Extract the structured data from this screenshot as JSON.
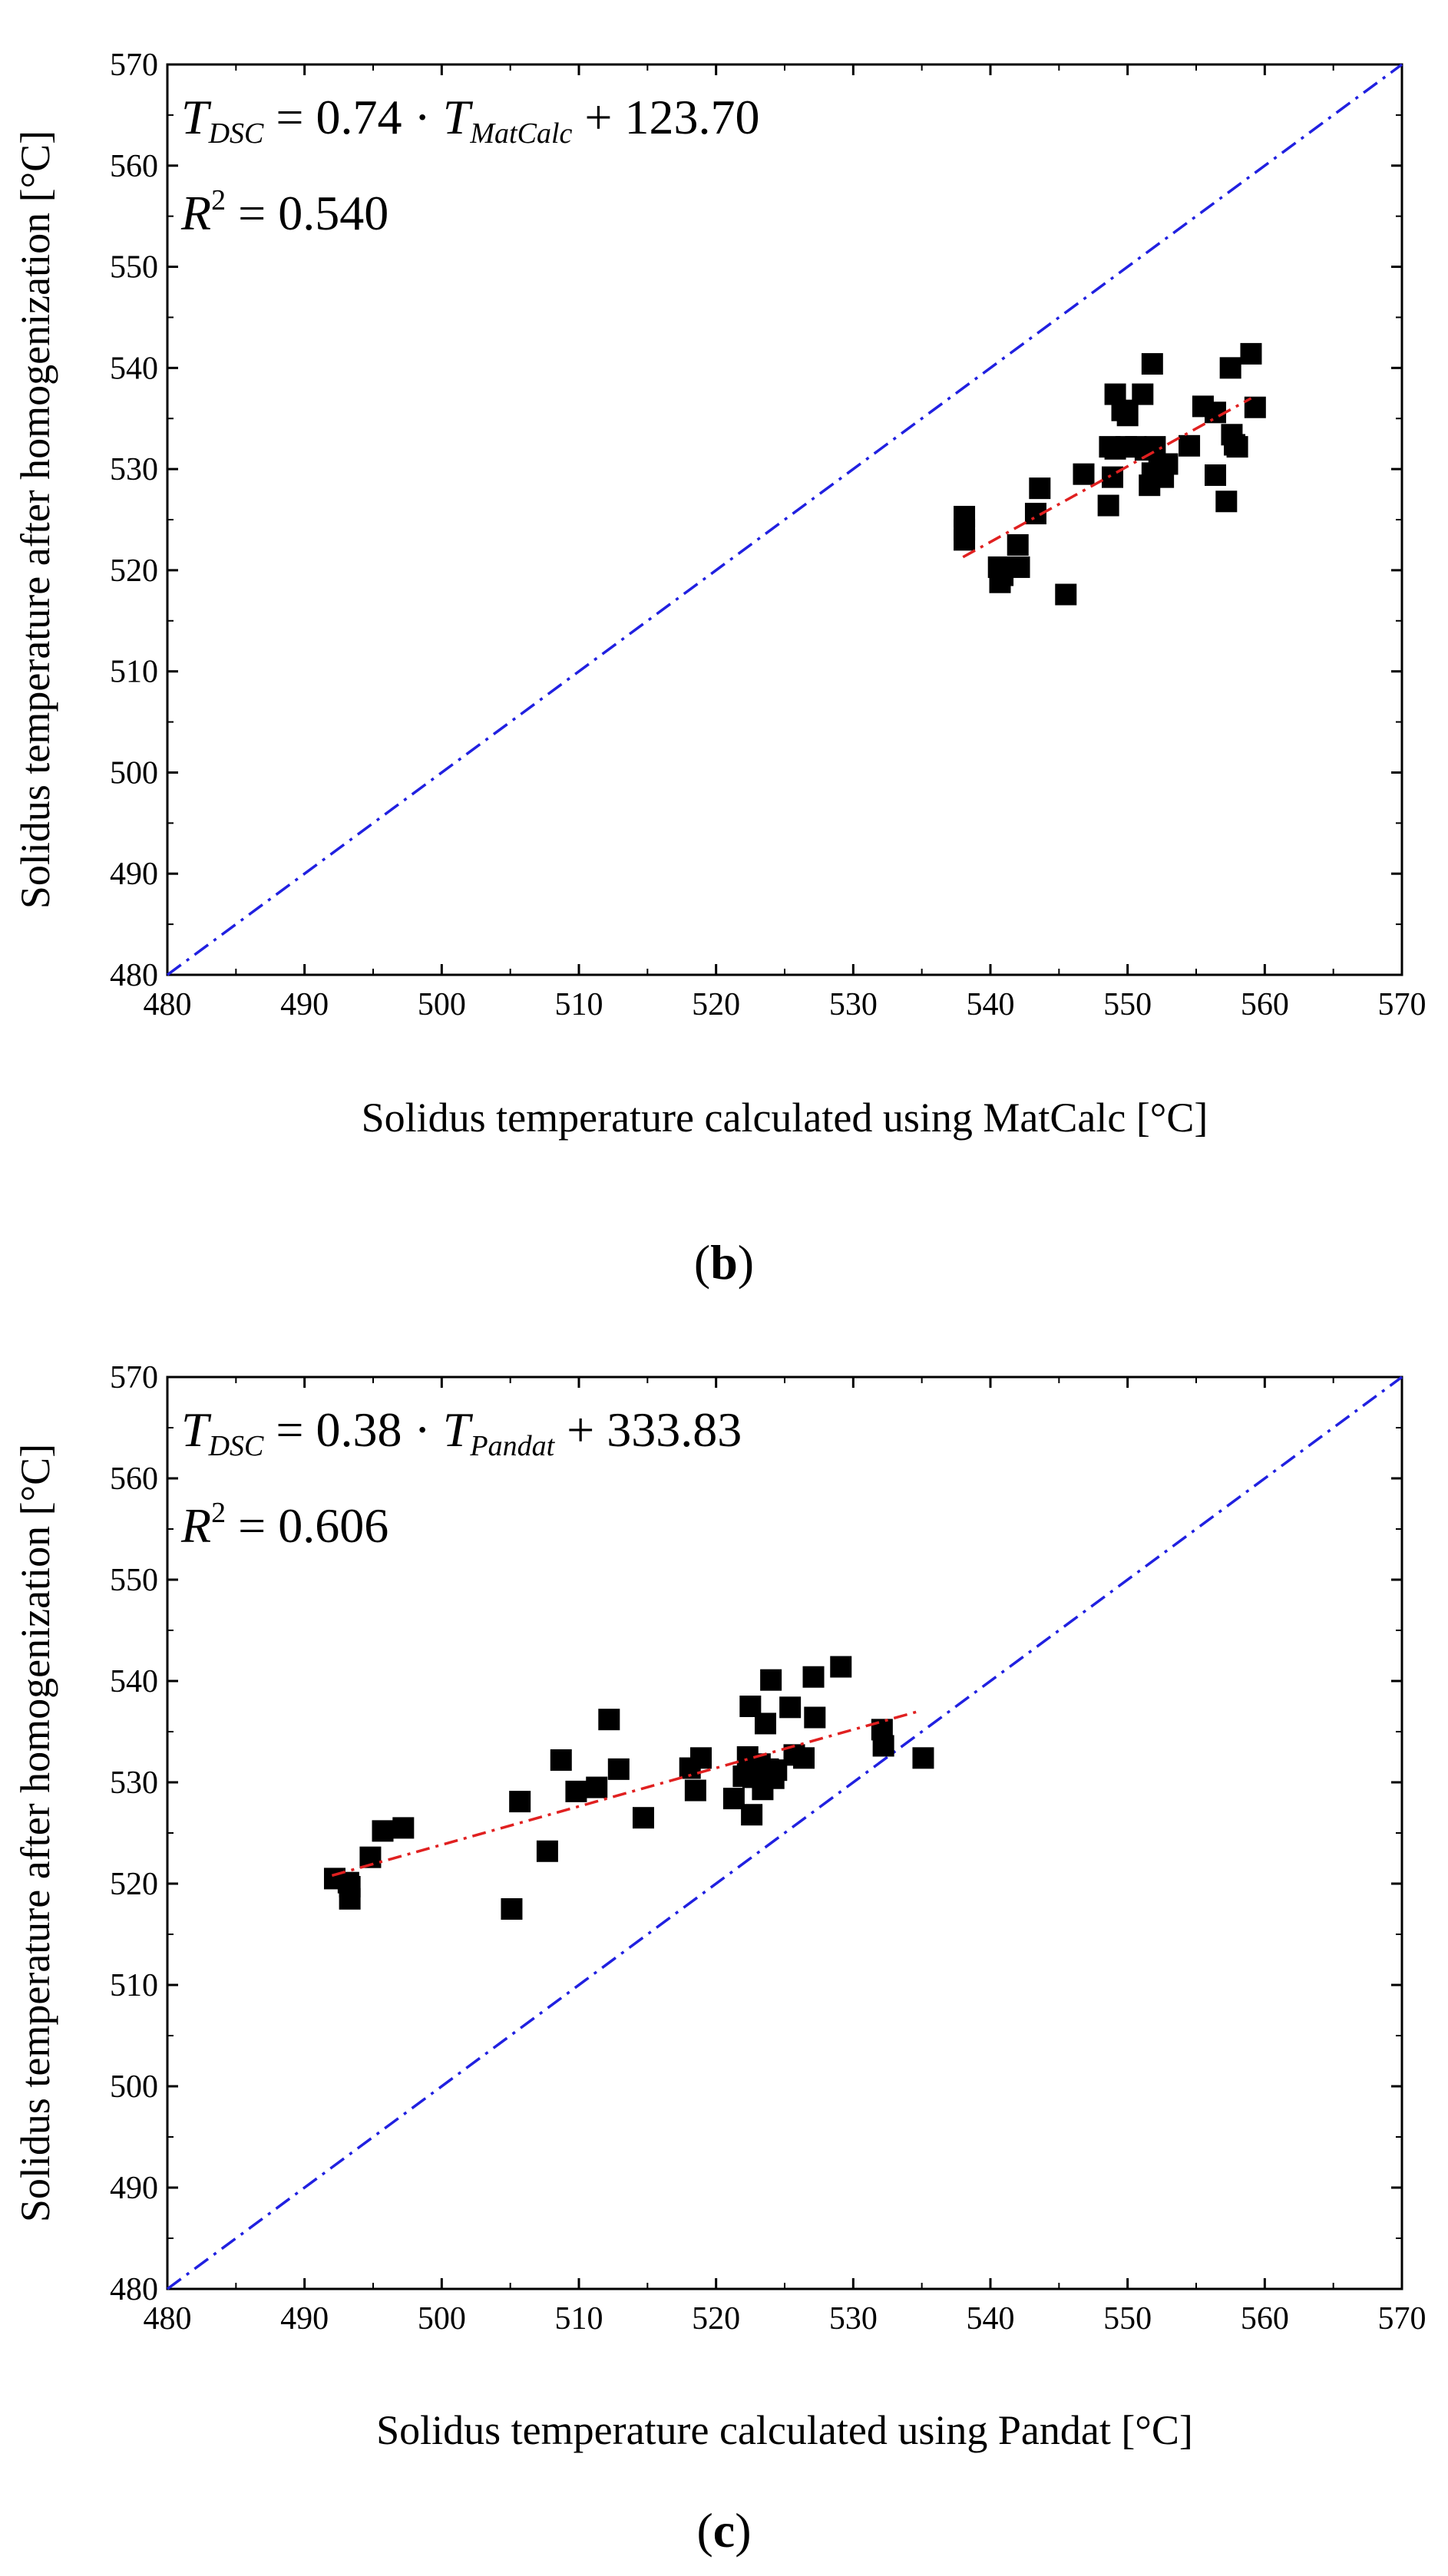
{
  "chart_data": [
    {
      "type": "scatter",
      "caption_open": "(",
      "caption_letter": "b",
      "caption_close": ")",
      "xlabel": "Solidus temperature calculated using MatCalc [°C]",
      "ylabel": "Solidus temperature after homogenization [°C]",
      "xlim": [
        480,
        570
      ],
      "ylim": [
        480,
        570
      ],
      "xticks": [
        "480",
        "490",
        "500",
        "510",
        "520",
        "530",
        "540",
        "550",
        "560",
        "570"
      ],
      "yticks": [
        "480",
        "490",
        "500",
        "510",
        "520",
        "530",
        "540",
        "550",
        "560",
        "570"
      ],
      "equation": {
        "lhs_main": "T",
        "lhs_sub": "DSC",
        "coef": " = 0.74 · ",
        "var_main": "T",
        "var_sub": "MatCalc",
        "intercept": " + 123.70",
        "r2_main": "R",
        "r2_sup": "2",
        "r2_value": " = 0.540"
      },
      "reference_line": {
        "name": "y = x",
        "color": "#2020e0",
        "x": [
          480,
          570
        ],
        "y": [
          480,
          570
        ]
      },
      "fit_line": {
        "name": "linear fit",
        "color": "#e02020",
        "x": [
          538,
          559
        ],
        "y": [
          521.3,
          537.0
        ]
      },
      "marker_color": "#000000",
      "series": [
        {
          "name": "measured",
          "x": [
            538.1,
            538.1,
            538.1,
            540.6,
            540.7,
            540.9,
            542.0,
            542.1,
            543.3,
            543.6,
            545.5,
            546.8,
            548.6,
            548.7,
            548.9,
            549.1,
            549.1,
            549.6,
            549.9,
            550.0,
            550.6,
            551.1,
            551.3,
            551.6,
            551.8,
            551.8,
            552.0,
            552.3,
            552.6,
            552.9,
            554.5,
            555.5,
            556.4,
            556.4,
            557.2,
            557.5,
            557.6,
            557.8,
            558.0,
            559.0,
            559.3
          ],
          "y": [
            525.3,
            524.0,
            523.0,
            520.3,
            518.8,
            519.5,
            522.5,
            520.3,
            525.6,
            528.1,
            517.6,
            529.5,
            526.4,
            532.2,
            529.2,
            532.0,
            537.4,
            535.8,
            532.2,
            535.3,
            532.2,
            537.4,
            531.9,
            528.4,
            529.6,
            540.4,
            532.2,
            530.5,
            529.2,
            530.5,
            532.3,
            536.2,
            535.6,
            529.4,
            526.8,
            540.0,
            533.4,
            532.4,
            532.2,
            541.4,
            536.1
          ]
        }
      ]
    },
    {
      "type": "scatter",
      "caption_open": "(",
      "caption_letter": "c",
      "caption_close": ")",
      "xlabel": "Solidus temperature calculated using Pandat [°C]",
      "ylabel": "Solidus temperature after homogenization [°C]",
      "xlim": [
        480,
        570
      ],
      "ylim": [
        480,
        570
      ],
      "xticks": [
        "480",
        "490",
        "500",
        "510",
        "520",
        "530",
        "540",
        "550",
        "560",
        "570"
      ],
      "yticks": [
        "480",
        "490",
        "500",
        "510",
        "520",
        "530",
        "540",
        "550",
        "560",
        "570"
      ],
      "equation": {
        "lhs_main": "T",
        "lhs_sub": "DSC",
        "coef": " = 0.38 · ",
        "var_main": "T",
        "var_sub": "Pandat",
        "intercept": " + 333.83",
        "r2_main": "R",
        "r2_sup": "2",
        "r2_value": " = 0.606"
      },
      "reference_line": {
        "name": "y = x",
        "color": "#2020e0",
        "x": [
          480,
          570
        ],
        "y": [
          480,
          570
        ]
      },
      "fit_line": {
        "name": "linear fit",
        "color": "#e02020",
        "x": [
          492,
          535
        ],
        "y": [
          520.8,
          537.1
        ]
      },
      "marker_color": "#000000",
      "series": [
        {
          "name": "measured",
          "x": [
            492.2,
            493.2,
            493.3,
            493.3,
            494.8,
            495.7,
            497.2,
            505.1,
            505.7,
            507.7,
            508.7,
            509.8,
            511.3,
            512.2,
            512.9,
            514.7,
            518.1,
            518.5,
            518.9,
            521.3,
            522.0,
            522.3,
            522.5,
            522.6,
            522.6,
            522.7,
            523.2,
            523.4,
            523.6,
            523.6,
            523.8,
            524.0,
            524.2,
            524.4,
            525.4,
            525.7,
            526.4,
            527.1,
            527.2,
            529.1,
            532.1,
            532.2,
            535.1
          ],
          "y": [
            520.5,
            520.1,
            519.7,
            518.5,
            522.6,
            525.2,
            525.5,
            517.5,
            528.1,
            523.2,
            532.2,
            529.1,
            529.5,
            536.2,
            531.3,
            526.5,
            531.4,
            529.2,
            532.4,
            528.4,
            530.6,
            532.5,
            537.5,
            526.8,
            531.3,
            530.5,
            531.8,
            529.3,
            530.6,
            535.8,
            531.3,
            540.1,
            530.4,
            531.2,
            537.4,
            532.7,
            532.4,
            540.4,
            536.4,
            541.4,
            535.2,
            533.6,
            532.4
          ]
        }
      ]
    }
  ]
}
